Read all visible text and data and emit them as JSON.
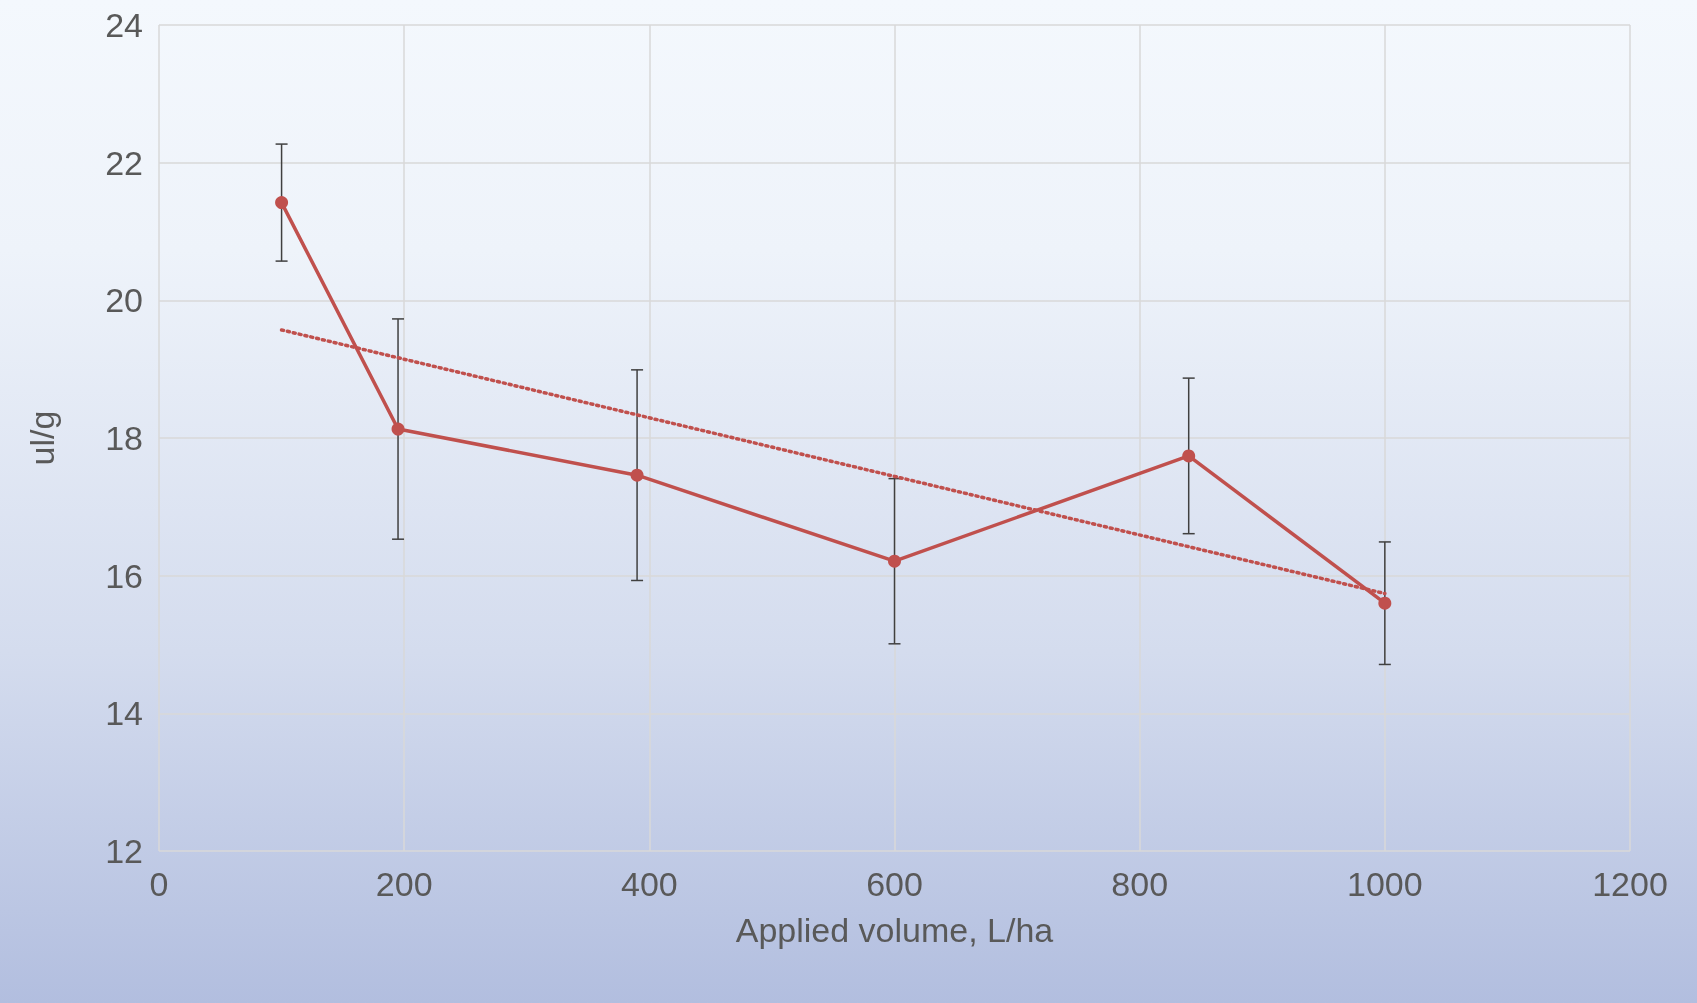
{
  "chart_data": {
    "type": "line",
    "xlabel": "Applied volume, L/ha",
    "ylabel": "ul/g",
    "xlim": [
      0,
      1200
    ],
    "xticks": [
      0,
      200,
      400,
      600,
      800,
      1000,
      1200
    ],
    "ylim": [
      12,
      24
    ],
    "yticks": [
      12,
      14,
      16,
      18,
      20,
      22,
      24
    ],
    "grid": true,
    "series": [
      {
        "color": "#c0504d",
        "marker": "circle",
        "line_style": "solid",
        "x": [
          100,
          195,
          390,
          600,
          840,
          1000
        ],
        "values": [
          21.42,
          18.13,
          17.46,
          16.21,
          17.74,
          15.6
        ],
        "errors": [
          0.85,
          1.6,
          1.53,
          1.2,
          1.13,
          0.89
        ]
      },
      {
        "color": "#c0504d",
        "marker": "none",
        "line_style": "dotted",
        "x": [
          100,
          1000
        ],
        "values": [
          19.57,
          15.74
        ]
      }
    ]
  }
}
